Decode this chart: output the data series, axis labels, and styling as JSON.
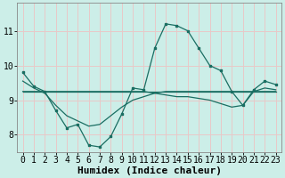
{
  "xlabel": "Humidex (Indice chaleur)",
  "bg_color": "#cceee8",
  "grid_color": "#e8c8c8",
  "line_color": "#1a6e62",
  "xlim": [
    -0.5,
    23.5
  ],
  "ylim": [
    7.5,
    11.8
  ],
  "yticks": [
    8,
    9,
    10,
    11
  ],
  "xticks": [
    0,
    1,
    2,
    3,
    4,
    5,
    6,
    7,
    8,
    9,
    10,
    11,
    12,
    13,
    14,
    15,
    16,
    17,
    18,
    19,
    20,
    21,
    22,
    23
  ],
  "series_main": [
    9.8,
    9.4,
    9.25,
    8.7,
    8.2,
    8.3,
    7.7,
    7.65,
    7.95,
    8.6,
    9.35,
    9.3,
    10.5,
    11.2,
    11.15,
    11.0,
    10.5,
    10.0,
    9.85,
    9.25,
    8.85,
    9.3,
    9.55,
    9.45
  ],
  "series_flat": [
    9.25,
    9.25,
    9.25,
    9.25,
    9.25,
    9.25,
    9.25,
    9.25,
    9.25,
    9.25,
    9.25,
    9.25,
    9.25,
    9.25,
    9.25,
    9.25,
    9.25,
    9.25,
    9.25,
    9.25,
    9.25,
    9.25,
    9.25,
    9.25
  ],
  "series_bow1": [
    9.55,
    9.35,
    9.2,
    8.85,
    8.55,
    8.4,
    8.25,
    8.3,
    8.55,
    8.8,
    9.0,
    9.1,
    9.2,
    9.25,
    9.25,
    9.25,
    9.25,
    9.25,
    9.25,
    9.25,
    9.25,
    9.25,
    9.25,
    9.25
  ],
  "series_bow2": [
    9.25,
    9.25,
    9.25,
    9.25,
    9.25,
    9.25,
    9.25,
    9.25,
    9.25,
    9.25,
    9.25,
    9.25,
    9.2,
    9.15,
    9.1,
    9.1,
    9.05,
    9.0,
    8.9,
    8.8,
    8.85,
    9.25,
    9.35,
    9.3
  ],
  "xlabel_fontsize": 8,
  "tick_fontsize": 7
}
